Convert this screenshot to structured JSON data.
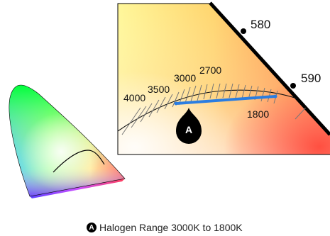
{
  "marker": {
    "letter": "A"
  },
  "wavelength_labels": [
    "580",
    "590"
  ],
  "cct_labels": [
    "4000",
    "3500",
    "3000",
    "2700",
    "1800"
  ],
  "caption": {
    "badge": "A",
    "text": "Halogen Range 3000K to 1800K"
  },
  "colors": {
    "range_line": "#2a7de1",
    "frame": "#000000"
  }
}
